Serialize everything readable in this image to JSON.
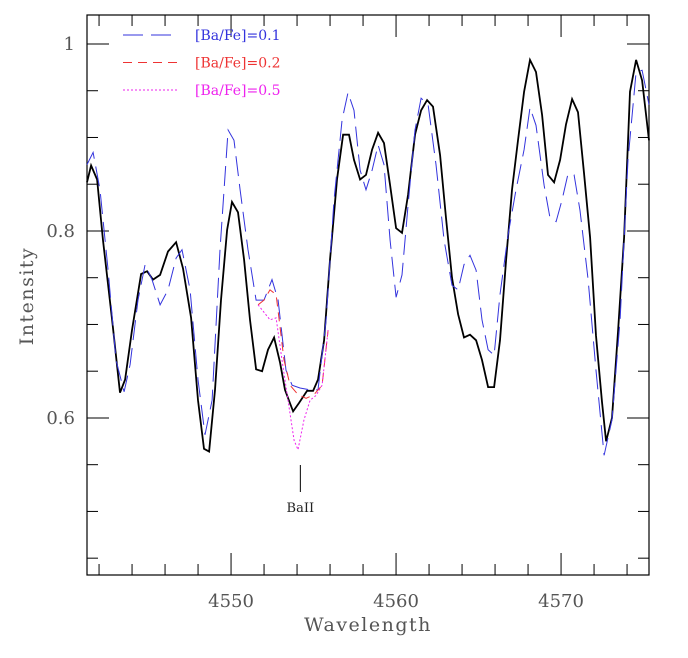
{
  "chart_data": {
    "type": "line",
    "xlabel": "Wavelength",
    "ylabel": "Intensity",
    "xlim": [
      4541.27,
      4575.33
    ],
    "ylim": [
      0.432,
      1.031
    ],
    "xticks": [
      4550,
      4560,
      4570
    ],
    "yticks": [
      0.6,
      0.8,
      1
    ],
    "xminorticks": [
      4542,
      4544,
      4546,
      4548,
      4552,
      4554,
      4556,
      4558,
      4562,
      4564,
      4566,
      4568,
      4572,
      4574
    ],
    "yminorticks": [
      0.45,
      0.5,
      0.55,
      0.65,
      0.7,
      0.75,
      0.85,
      0.9,
      0.95
    ],
    "legend": "upper left",
    "annotations": [
      {
        "text": "BaII",
        "x": 4554.2
      }
    ],
    "series": [
      {
        "color": "#000000",
        "style": "solid",
        "x": [
          4541.27,
          4541.52,
          4541.88,
          4542.24,
          4542.79,
          4543.27,
          4543.58,
          4544.0,
          4544.55,
          4544.91,
          4545.27,
          4545.7,
          4546.18,
          4546.67,
          4547.09,
          4547.58,
          4548.0,
          4548.36,
          4548.67,
          4549.03,
          4549.39,
          4549.76,
          4550.06,
          4550.42,
          4550.79,
          4551.15,
          4551.52,
          4551.88,
          4552.24,
          4552.61,
          4552.97,
          4553.27,
          4553.76,
          4554.12,
          4554.61,
          4554.97,
          4555.27,
          4555.64,
          4556.0,
          4556.42,
          4556.79,
          4557.15,
          4557.45,
          4557.82,
          4558.18,
          4558.55,
          4558.91,
          4559.27,
          4559.64,
          4560.0,
          4560.36,
          4560.73,
          4561.15,
          4561.52,
          4561.88,
          4562.24,
          4562.67,
          4563.03,
          4563.39,
          4563.76,
          4564.12,
          4564.48,
          4564.85,
          4565.21,
          4565.58,
          4565.94,
          4566.3,
          4566.67,
          4567.03,
          4567.39,
          4567.76,
          4568.12,
          4568.48,
          4568.85,
          4569.21,
          4569.58,
          4569.94,
          4570.3,
          4570.67,
          4571.03,
          4571.39,
          4571.76,
          4572.12,
          4572.48,
          4572.73,
          4573.09,
          4573.45,
          4573.82,
          4574.18,
          4574.55,
          4574.91,
          4575.33
        ],
        "values": [
          0.852,
          0.87,
          0.855,
          0.79,
          0.705,
          0.627,
          0.641,
          0.694,
          0.754,
          0.757,
          0.748,
          0.753,
          0.778,
          0.788,
          0.76,
          0.707,
          0.619,
          0.567,
          0.564,
          0.63,
          0.726,
          0.801,
          0.831,
          0.82,
          0.769,
          0.705,
          0.652,
          0.65,
          0.673,
          0.686,
          0.659,
          0.63,
          0.607,
          0.616,
          0.629,
          0.629,
          0.641,
          0.683,
          0.769,
          0.855,
          0.903,
          0.903,
          0.876,
          0.855,
          0.86,
          0.887,
          0.905,
          0.894,
          0.849,
          0.803,
          0.798,
          0.839,
          0.903,
          0.929,
          0.94,
          0.933,
          0.881,
          0.814,
          0.75,
          0.711,
          0.686,
          0.689,
          0.683,
          0.662,
          0.633,
          0.633,
          0.683,
          0.769,
          0.844,
          0.897,
          0.949,
          0.983,
          0.97,
          0.924,
          0.86,
          0.852,
          0.876,
          0.914,
          0.941,
          0.927,
          0.862,
          0.793,
          0.688,
          0.617,
          0.575,
          0.6,
          0.692,
          0.793,
          0.949,
          0.983,
          0.961,
          0.897
        ]
      },
      {
        "name": "[Ba/Fe]=0.1",
        "color": "#3333dd",
        "style": "long-dash",
        "x": [
          4541.27,
          4541.64,
          4542.06,
          4542.55,
          4543.03,
          4543.52,
          4543.88,
          4544.36,
          4544.79,
          4545.21,
          4545.7,
          4546.18,
          4546.67,
          4547.03,
          4547.52,
          4548.0,
          4548.42,
          4548.85,
          4549.33,
          4549.82,
          4550.18,
          4550.55,
          4551.03,
          4551.52,
          4552.0,
          4552.48,
          4552.85,
          4553.33,
          4553.7,
          4554.18,
          4554.79,
          4555.27,
          4555.76,
          4556.24,
          4556.73,
          4557.09,
          4557.45,
          4557.82,
          4558.18,
          4558.55,
          4558.91,
          4559.27,
          4559.64,
          4560.0,
          4560.36,
          4560.73,
          4561.15,
          4561.52,
          4561.94,
          4562.42,
          4562.91,
          4563.39,
          4563.76,
          4564.12,
          4564.48,
          4564.85,
          4565.21,
          4565.58,
          4565.94,
          4566.3,
          4566.79,
          4567.27,
          4567.76,
          4568.12,
          4568.48,
          4568.97,
          4569.33,
          4569.7,
          4570.06,
          4570.42,
          4570.79,
          4571.15,
          4571.64,
          4572.12,
          4572.61,
          4573.09,
          4573.58,
          4574.06,
          4574.55,
          4574.91,
          4575.33
        ],
        "values": [
          0.871,
          0.884,
          0.844,
          0.758,
          0.662,
          0.628,
          0.657,
          0.726,
          0.764,
          0.748,
          0.721,
          0.737,
          0.771,
          0.78,
          0.737,
          0.641,
          0.582,
          0.619,
          0.78,
          0.908,
          0.897,
          0.844,
          0.78,
          0.726,
          0.726,
          0.748,
          0.726,
          0.651,
          0.635,
          0.632,
          0.63,
          0.63,
          0.705,
          0.833,
          0.919,
          0.948,
          0.929,
          0.865,
          0.844,
          0.865,
          0.892,
          0.871,
          0.79,
          0.729,
          0.753,
          0.828,
          0.908,
          0.942,
          0.935,
          0.871,
          0.79,
          0.742,
          0.737,
          0.764,
          0.774,
          0.758,
          0.705,
          0.673,
          0.667,
          0.732,
          0.796,
          0.844,
          0.887,
          0.932,
          0.913,
          0.849,
          0.814,
          0.81,
          0.833,
          0.861,
          0.86,
          0.822,
          0.748,
          0.651,
          0.56,
          0.598,
          0.705,
          0.876,
          0.97,
          0.972,
          0.935
        ]
      },
      {
        "name": "[Ba/Fe]=0.2",
        "color": "#ee3333",
        "style": "dash",
        "x": [
          4551.64,
          4552.0,
          4552.36,
          4552.73,
          4553.21,
          4553.58,
          4554.06,
          4554.55,
          4555.03,
          4555.52,
          4555.88
        ],
        "values": [
          0.721,
          0.726,
          0.737,
          0.732,
          0.662,
          0.635,
          0.625,
          0.621,
          0.625,
          0.635,
          0.694
        ]
      },
      {
        "name": "[Ba/Fe]=0.5",
        "color": "#ee22ee",
        "style": "dot",
        "x": [
          4551.64,
          4552.0,
          4552.36,
          4552.73,
          4553.09,
          4553.45,
          4553.82,
          4554.06,
          4554.42,
          4554.79,
          4555.15,
          4555.52,
          4555.88
        ],
        "values": [
          0.721,
          0.713,
          0.705,
          0.707,
          0.662,
          0.619,
          0.576,
          0.566,
          0.598,
          0.619,
          0.624,
          0.635,
          0.694
        ]
      }
    ]
  }
}
